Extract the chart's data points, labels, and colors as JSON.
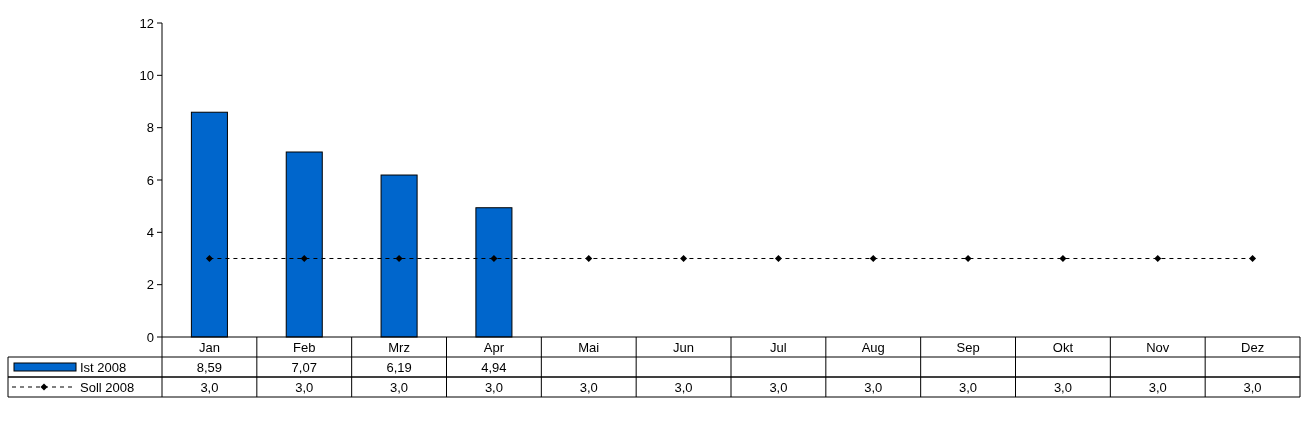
{
  "chart_data": {
    "type": "bar",
    "categories": [
      "Jan",
      "Feb",
      "Mrz",
      "Apr",
      "Mai",
      "Jun",
      "Jul",
      "Aug",
      "Sep",
      "Okt",
      "Nov",
      "Dez"
    ],
    "ylim": [
      0,
      12
    ],
    "yticks": [
      0,
      2,
      4,
      6,
      8,
      10,
      12
    ],
    "grid": false,
    "legend": "bottom left",
    "series": [
      {
        "name": "Ist 2008",
        "color": "#0066cc",
        "values": [
          8.59,
          7.07,
          6.19,
          4.94,
          null,
          null,
          null,
          null,
          null,
          null,
          null,
          null
        ],
        "value_labels": [
          "8,59",
          "7,07",
          "6,19",
          "4,94",
          null,
          null,
          null,
          null,
          null,
          null,
          null,
          null
        ]
      },
      {
        "name": "Soll 2008",
        "type": "line",
        "color": "#000000",
        "marker": "diamond",
        "line_style": "dashed",
        "values": [
          3.0,
          3.0,
          3.0,
          3.0,
          3.0,
          3.0,
          3.0,
          3.0,
          3.0,
          3.0,
          3.0,
          3.0
        ],
        "value_labels": [
          "3,0",
          "3,0",
          "3,0",
          "3,0",
          "3,0",
          "3,0",
          "3,0",
          "3,0",
          "3,0",
          "3,0",
          "3,0",
          "3,0"
        ]
      }
    ]
  }
}
